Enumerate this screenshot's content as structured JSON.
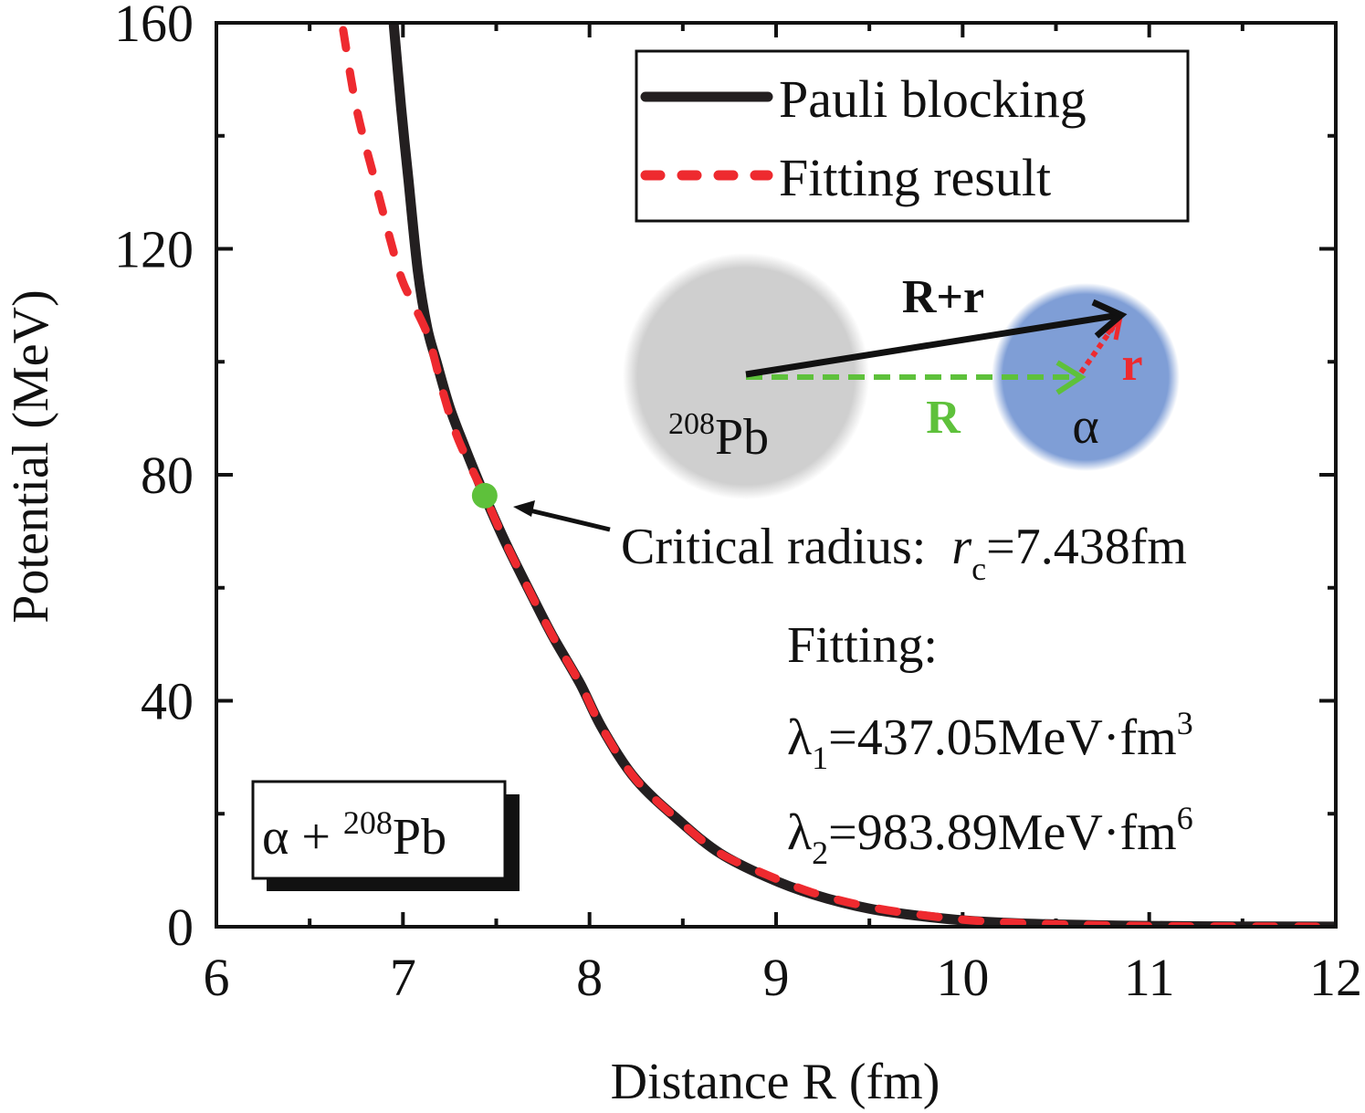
{
  "chart_data": {
    "type": "line",
    "title": "",
    "xlabel": "Distance R (fm)",
    "ylabel": "Potential (MeV)",
    "xlim": [
      6,
      12
    ],
    "ylim": [
      0,
      160
    ],
    "xticks": [
      6,
      7,
      8,
      9,
      10,
      11,
      12
    ],
    "xtick_labels": [
      "6",
      "7",
      "8",
      "9",
      "10",
      "11",
      "12"
    ],
    "yticks": [
      0,
      40,
      80,
      120,
      160
    ],
    "ytick_labels": [
      "0",
      "40",
      "80",
      "120",
      "160"
    ],
    "x_minor_step": 0.5,
    "y_minor_step": 20,
    "grid": false,
    "ticks_direction": "in",
    "mirror_axes": true,
    "legend": {
      "placement": "top-right",
      "entries": [
        {
          "label": "Pauli blocking",
          "style": "solid",
          "color": "#231f20"
        },
        {
          "label": "Fitting result",
          "style": "dashed",
          "color": "#ee2a2f"
        }
      ]
    },
    "series": [
      {
        "name": "Pauli blocking",
        "color": "#231f20",
        "x": [
          6.95,
          6.99,
          7.03,
          7.08,
          7.13,
          7.18,
          7.25,
          7.33,
          7.438,
          7.55,
          7.7,
          7.81,
          7.95,
          8.07,
          8.25,
          8.49,
          8.7,
          8.95,
          9.2,
          9.5,
          9.8,
          10.1,
          10.5,
          11.0,
          11.5,
          12.0
        ],
        "y": [
          160,
          145,
          132,
          116,
          106,
          100,
          92,
          85,
          76.3,
          68,
          58,
          51,
          43,
          35,
          26,
          18.5,
          13,
          8.8,
          5.7,
          3.2,
          1.8,
          0.9,
          0.4,
          0.15,
          0.05,
          0.02
        ]
      },
      {
        "name": "Fitting result",
        "color": "#ee2a2f",
        "x": [
          6.68,
          6.75,
          6.85,
          6.98,
          7.06,
          7.14,
          7.22,
          7.3,
          7.438,
          7.55,
          7.7,
          7.81,
          7.95,
          8.07,
          8.25,
          8.49,
          8.7,
          8.95,
          9.2,
          9.5,
          9.8,
          10.1,
          10.5,
          11.0,
          11.5,
          12.0
        ],
        "y": [
          158.7,
          145,
          132,
          116,
          110,
          104,
          94,
          86,
          76.3,
          68,
          58,
          51,
          43,
          35,
          26,
          18.5,
          13,
          9.2,
          6.0,
          3.5,
          2.0,
          1.0,
          0.45,
          0.15,
          0.05,
          0.02
        ]
      }
    ],
    "marker": {
      "name": "critical-radius",
      "x": 7.438,
      "y": 76.3,
      "color": "#5ec13b"
    },
    "annotations": {
      "critical_radius_label": "Critical radius: ",
      "rc_symbol": "r",
      "rc_subscript": "c",
      "rc_value": "=7.438fm",
      "fitting_title": "Fitting:",
      "lambda1_symbol": "λ",
      "lambda1_sub": "1",
      "lambda1_value": "=437.05MeV·fm",
      "lambda1_sup": "3",
      "lambda2_symbol": "λ",
      "lambda2_sub": "2",
      "lambda2_value": "=983.89MeV·fm",
      "lambda2_sup": "6",
      "system_label_alpha": "α + ",
      "system_label_mass": "208",
      "system_label_element": "Pb"
    },
    "inset": {
      "pb_mass": "208",
      "pb_element": "Pb",
      "alpha_label": "α",
      "vec_Rr_label": "R+r",
      "vec_R_label": "R",
      "vec_r_label": "r",
      "pb_color": "#cfcfcf",
      "alpha_color": "#7f9ed6",
      "vec_R_color": "#5ec13b",
      "vec_r_color": "#ee2a2f",
      "vec_Rr_color": "#111111"
    }
  }
}
